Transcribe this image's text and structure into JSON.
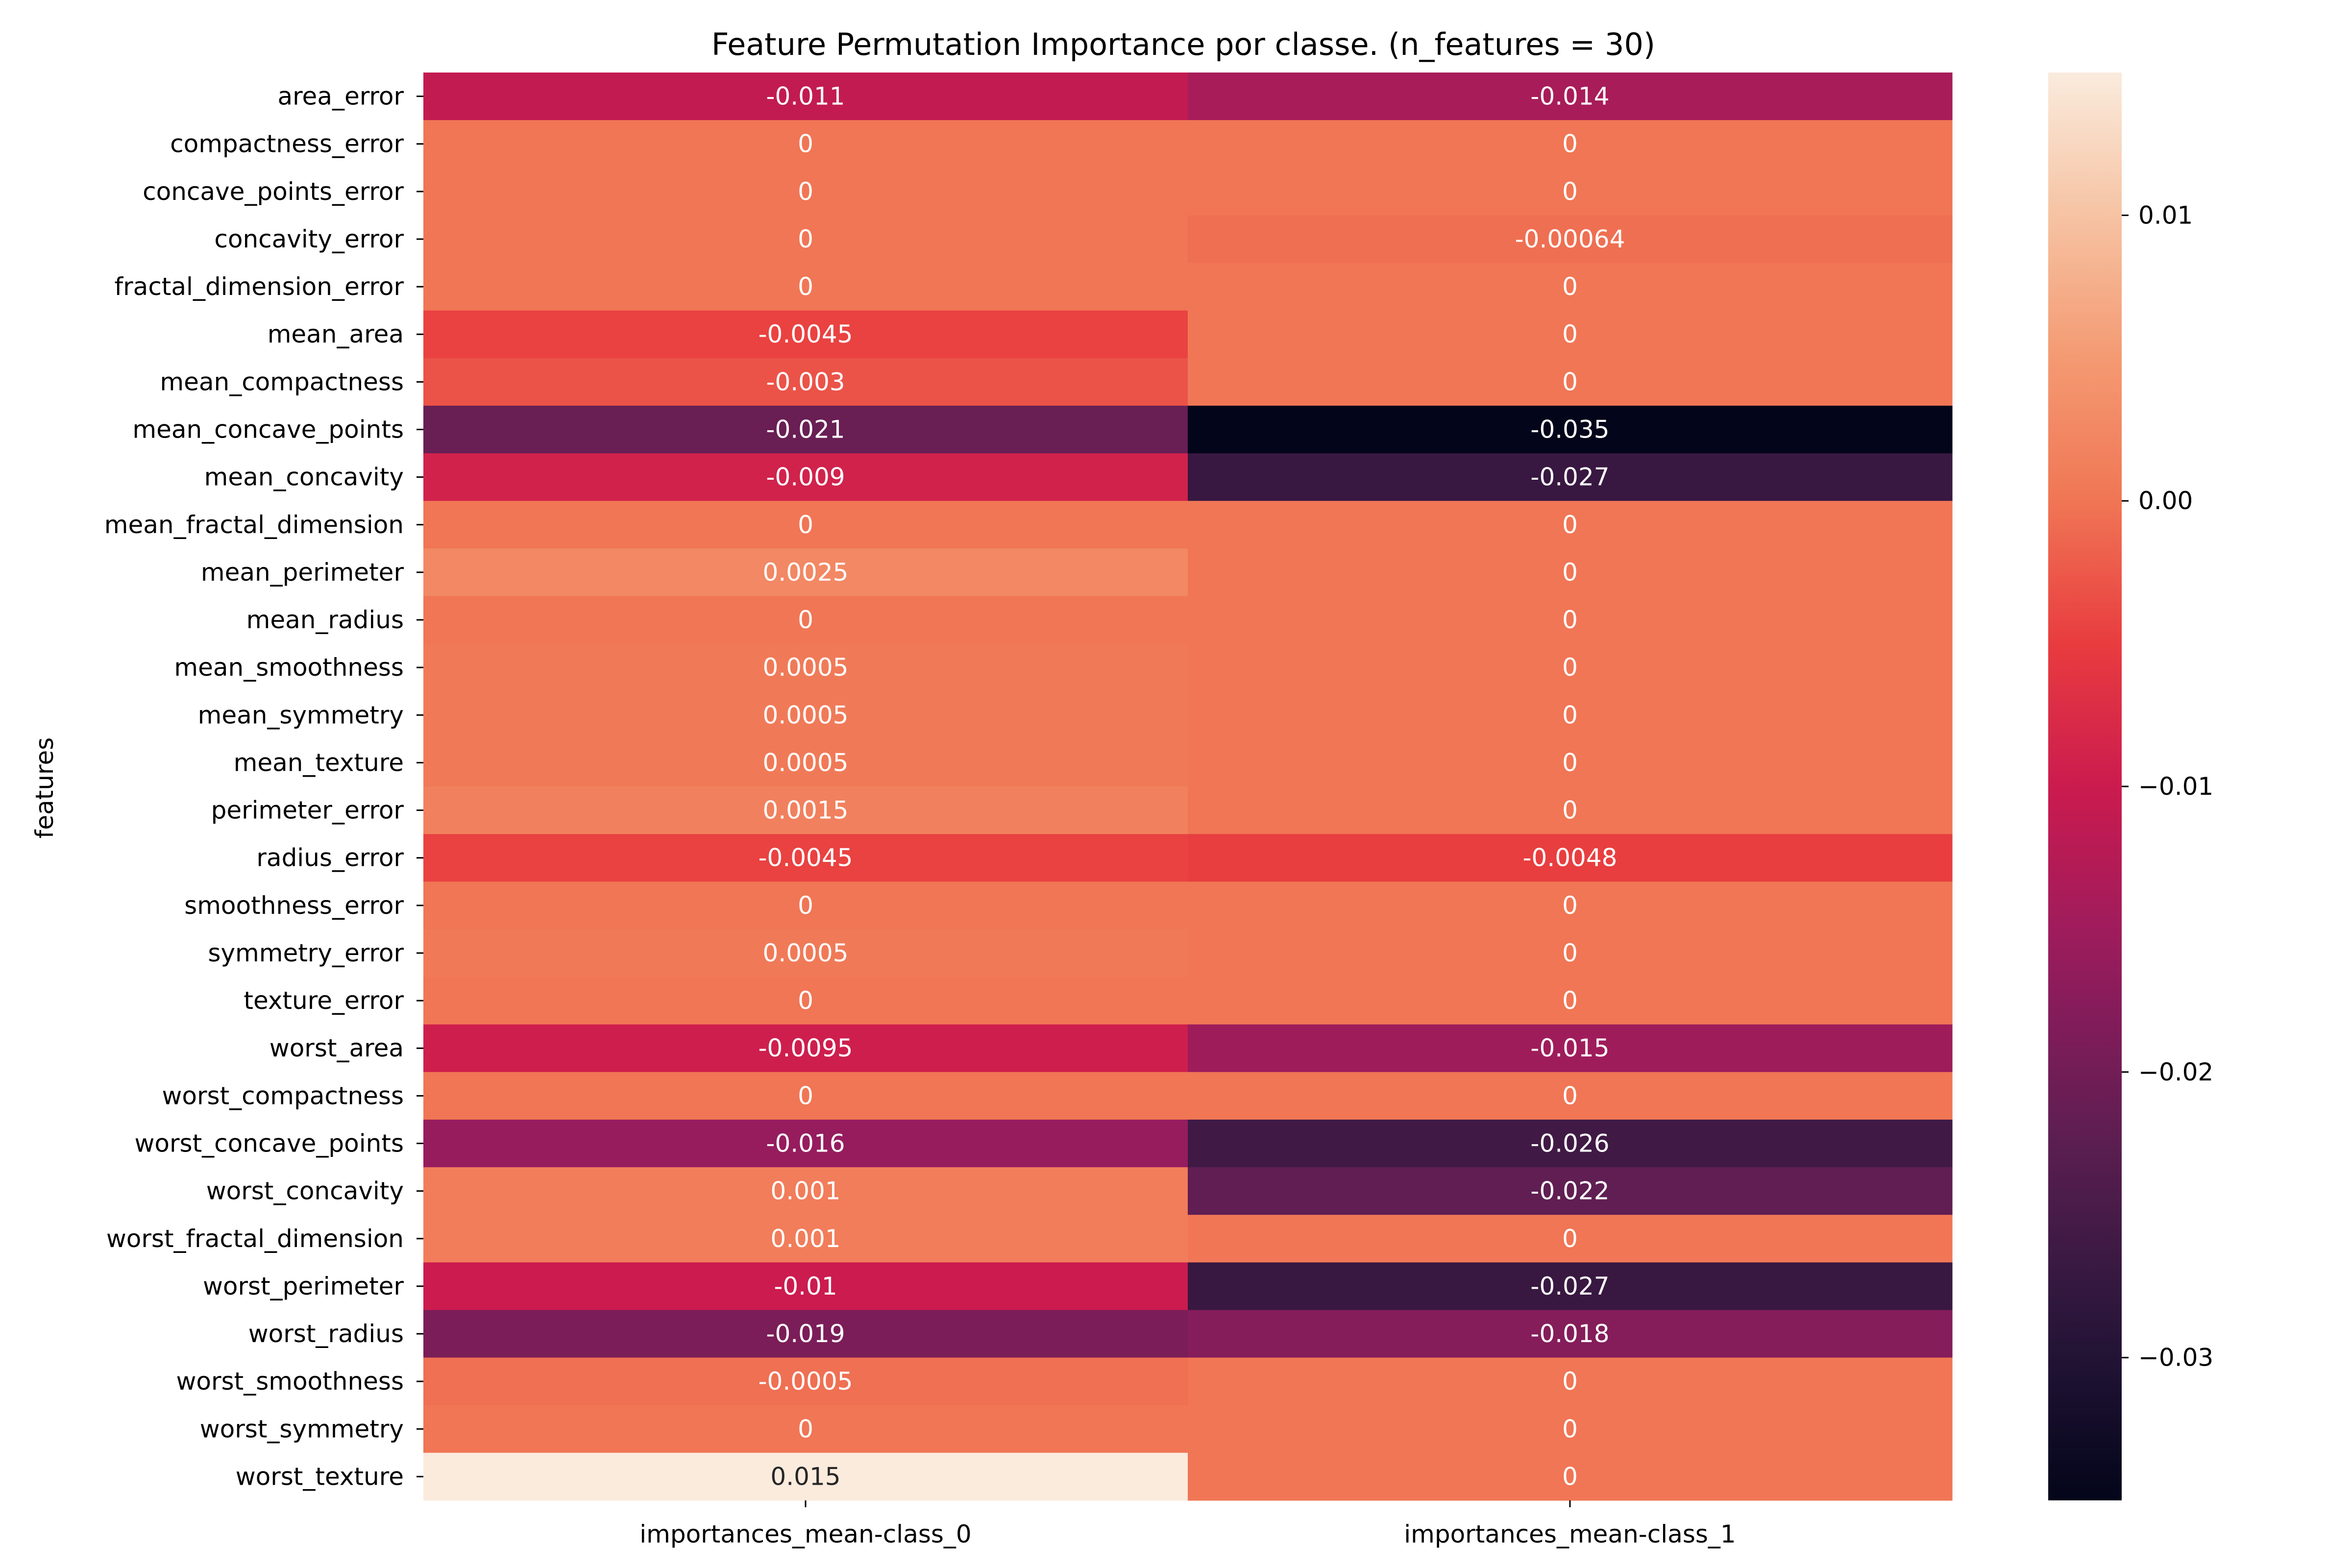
{
  "chart_data": {
    "type": "heatmap",
    "title": "Feature Permutation Importance por classe. (n_features = 30)",
    "xlabel": "",
    "ylabel": "features",
    "columns": [
      "importances_mean-class_0",
      "importances_mean-class_1"
    ],
    "rows": [
      "area_error",
      "compactness_error",
      "concave_points_error",
      "concavity_error",
      "fractal_dimension_error",
      "mean_area",
      "mean_compactness",
      "mean_concave_points",
      "mean_concavity",
      "mean_fractal_dimension",
      "mean_perimeter",
      "mean_radius",
      "mean_smoothness",
      "mean_symmetry",
      "mean_texture",
      "perimeter_error",
      "radius_error",
      "smoothness_error",
      "symmetry_error",
      "texture_error",
      "worst_area",
      "worst_compactness",
      "worst_concave_points",
      "worst_concavity",
      "worst_fractal_dimension",
      "worst_perimeter",
      "worst_radius",
      "worst_smoothness",
      "worst_symmetry",
      "worst_texture"
    ],
    "values": [
      [
        -0.011,
        -0.014
      ],
      [
        0,
        0
      ],
      [
        0,
        0
      ],
      [
        0,
        -0.00064
      ],
      [
        0,
        0
      ],
      [
        -0.0045,
        0
      ],
      [
        -0.003,
        0
      ],
      [
        -0.021,
        -0.035
      ],
      [
        -0.009,
        -0.027
      ],
      [
        0,
        0
      ],
      [
        0.0025,
        0
      ],
      [
        0,
        0
      ],
      [
        0.0005,
        0
      ],
      [
        0.0005,
        0
      ],
      [
        0.0005,
        0
      ],
      [
        0.0015,
        0
      ],
      [
        -0.0045,
        -0.0048
      ],
      [
        0,
        0
      ],
      [
        0.0005,
        0
      ],
      [
        0,
        0
      ],
      [
        -0.0095,
        -0.015
      ],
      [
        0,
        0
      ],
      [
        -0.016,
        -0.026
      ],
      [
        0.001,
        -0.022
      ],
      [
        0.001,
        0
      ],
      [
        -0.01,
        -0.027
      ],
      [
        -0.019,
        -0.018
      ],
      [
        -0.0005,
        0
      ],
      [
        0,
        0
      ],
      [
        0.015,
        0
      ]
    ],
    "annotations": [
      [
        "-0.011",
        "-0.014"
      ],
      [
        "0",
        "0"
      ],
      [
        "0",
        "0"
      ],
      [
        "0",
        "-0.00064"
      ],
      [
        "0",
        "0"
      ],
      [
        "-0.0045",
        "0"
      ],
      [
        "-0.003",
        "0"
      ],
      [
        "-0.021",
        "-0.035"
      ],
      [
        "-0.009",
        "-0.027"
      ],
      [
        "0",
        "0"
      ],
      [
        "0.0025",
        "0"
      ],
      [
        "0",
        "0"
      ],
      [
        "0.0005",
        "0"
      ],
      [
        "0.0005",
        "0"
      ],
      [
        "0.0005",
        "0"
      ],
      [
        "0.0015",
        "0"
      ],
      [
        "-0.0045",
        "-0.0048"
      ],
      [
        "0",
        "0"
      ],
      [
        "0.0005",
        "0"
      ],
      [
        "0",
        "0"
      ],
      [
        "-0.0095",
        "-0.015"
      ],
      [
        "0",
        "0"
      ],
      [
        "-0.016",
        "-0.026"
      ],
      [
        "0.001",
        "-0.022"
      ],
      [
        "0.001",
        "0"
      ],
      [
        "-0.01",
        "-0.027"
      ],
      [
        "-0.019",
        "-0.018"
      ],
      [
        "-0.0005",
        "0"
      ],
      [
        "0",
        "0"
      ],
      [
        "0.015",
        "0"
      ]
    ],
    "colorbar": {
      "range": [
        -0.035,
        0.015
      ],
      "ticks": [
        0.01,
        0.0,
        -0.01,
        -0.02,
        -0.03
      ],
      "tick_labels": [
        "0.01",
        "0.00",
        "−0.01",
        "−0.02",
        "−0.03"
      ],
      "colormap": "rocket"
    },
    "grid": false,
    "legend": "colorbar-right"
  }
}
